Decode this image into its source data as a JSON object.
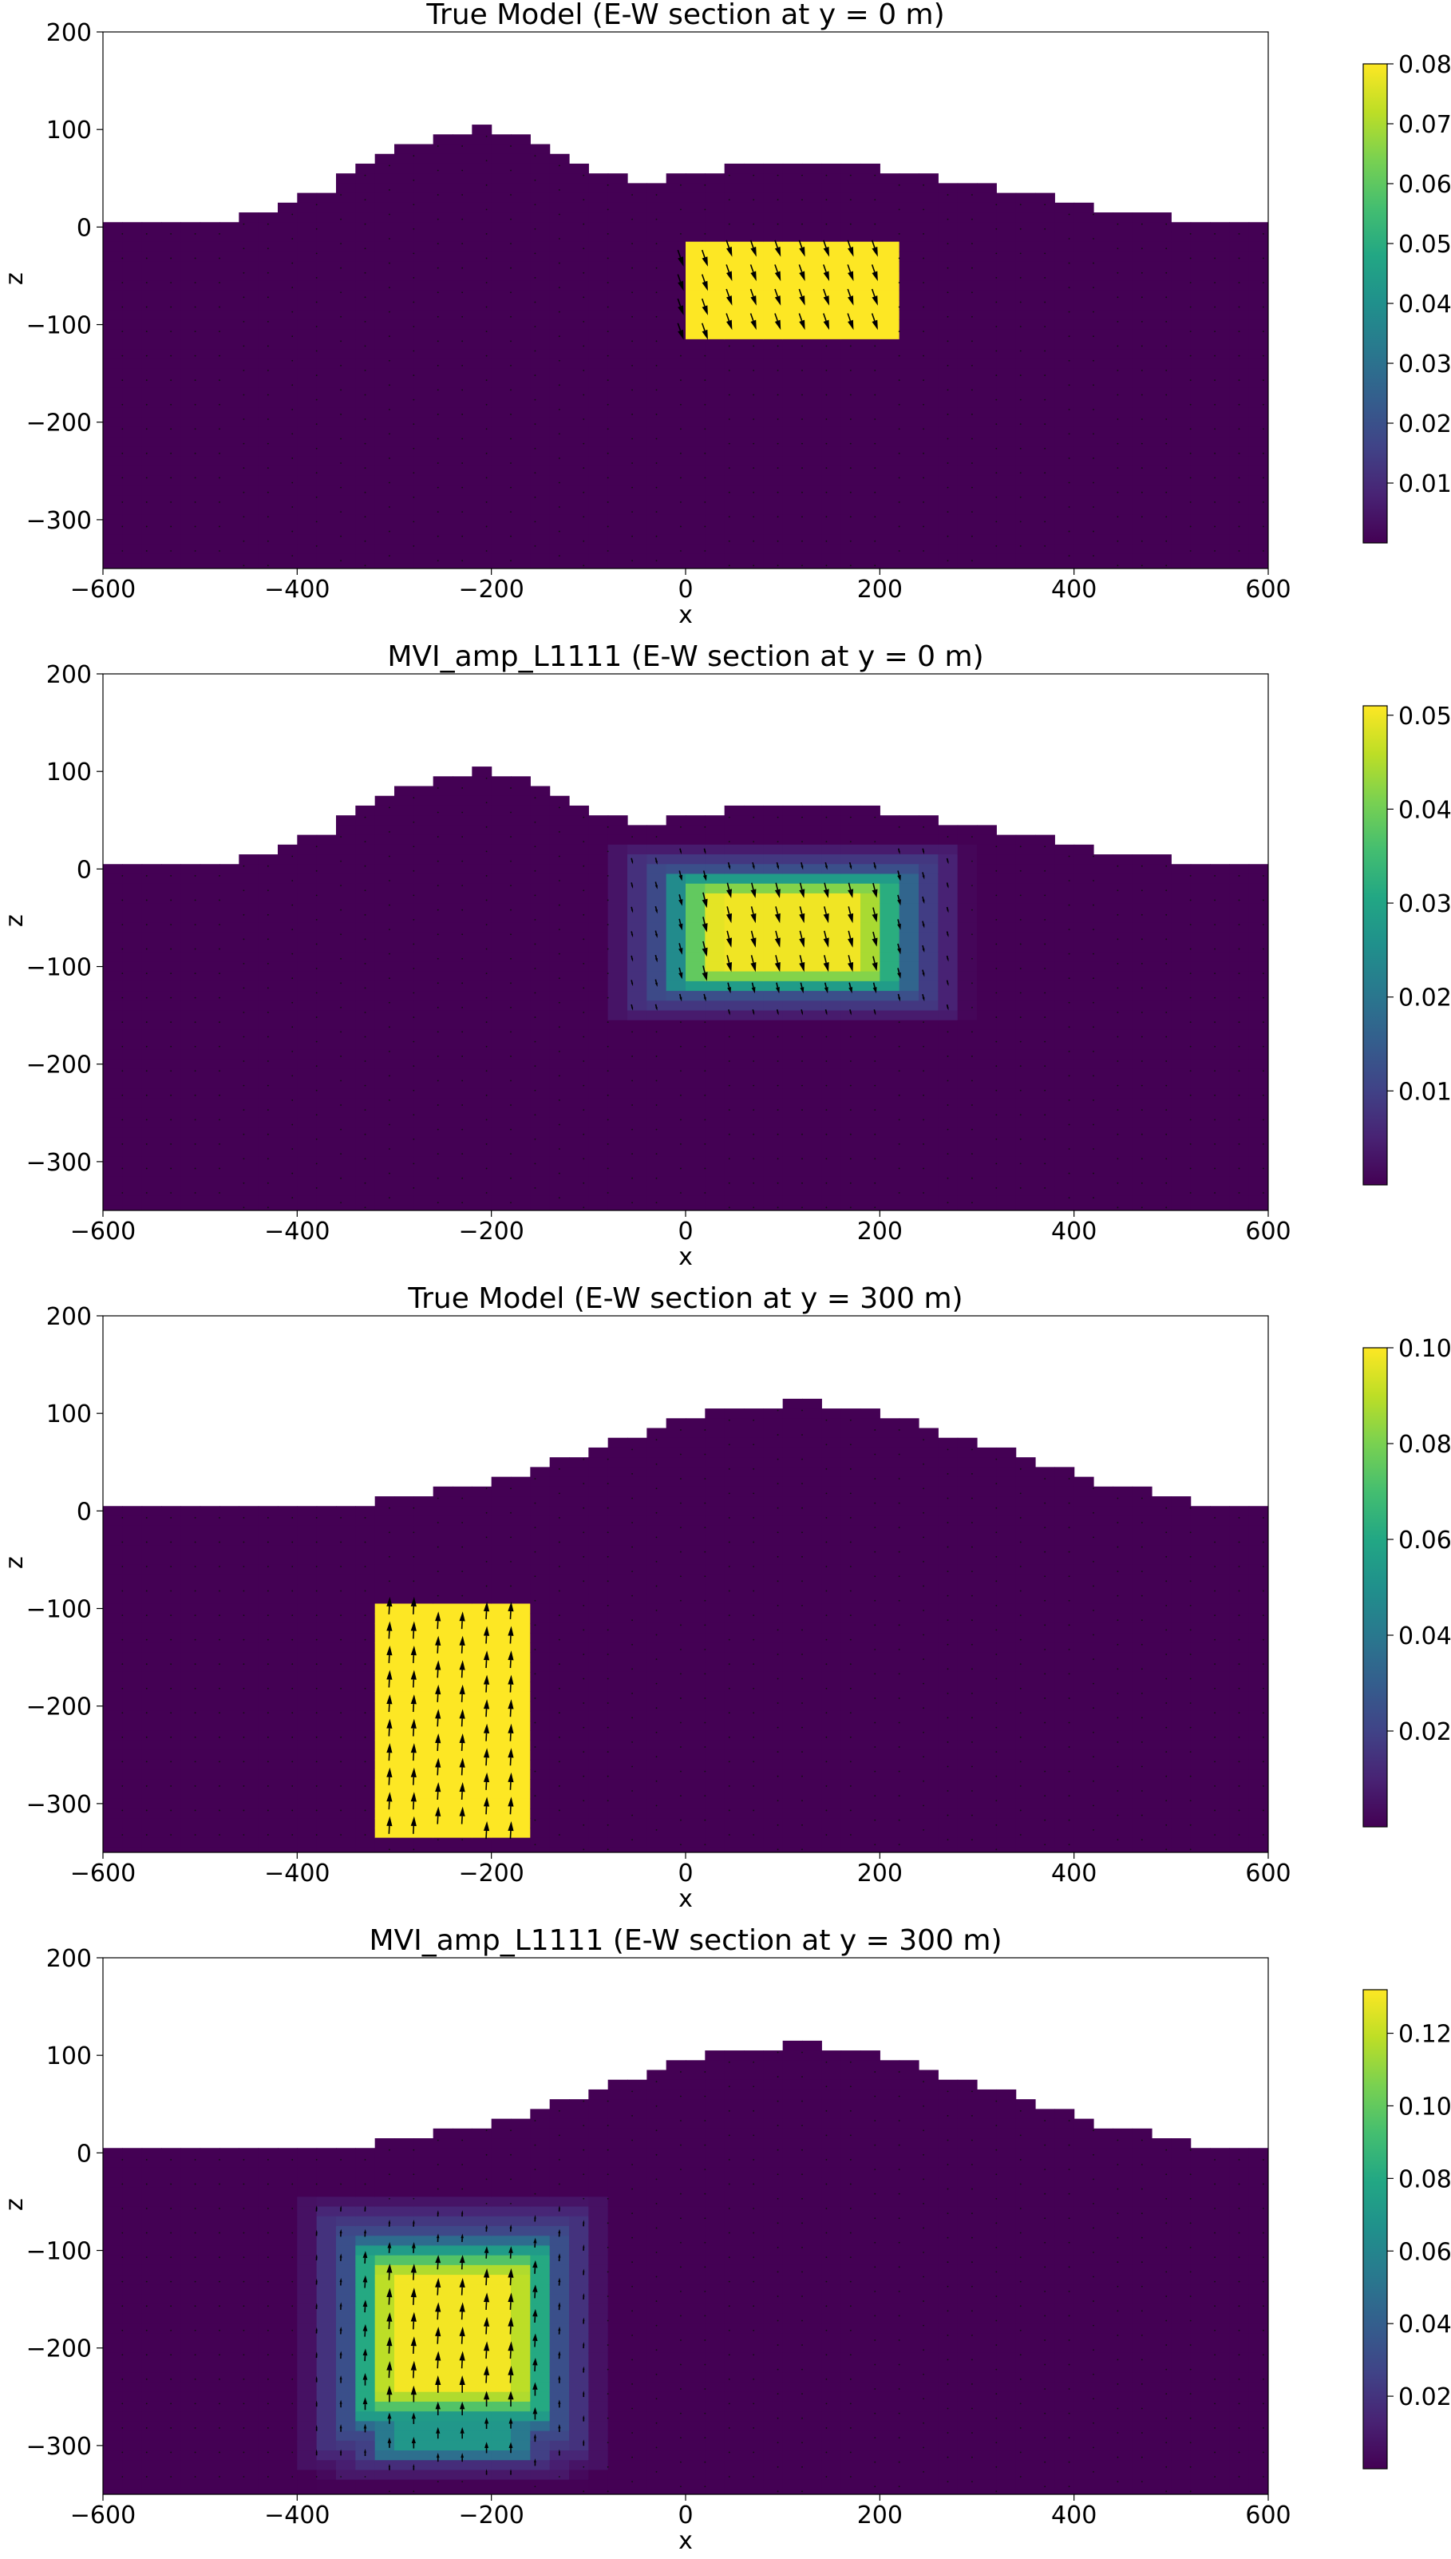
{
  "chart_data": [
    {
      "type": "heatmap",
      "title": "True Model (E-W section at y = 0 m)",
      "xlabel": "x",
      "ylabel": "z",
      "xlim": [
        -600,
        600
      ],
      "ylim": [
        -350,
        200
      ],
      "x_ticks": [
        "−600",
        "−400",
        "−200",
        "0",
        "200",
        "400",
        "600"
      ],
      "y_ticks": [
        "200",
        "100",
        "0",
        "−100",
        "−200",
        "−300"
      ],
      "topography": "A",
      "colorbar": {
        "ticks": [
          "0.01",
          "0.02",
          "0.03",
          "0.04",
          "0.05",
          "0.06",
          "0.07",
          "0.08"
        ],
        "range": [
          0,
          0.08
        ]
      },
      "bodies": [
        {
          "kind": "sharp",
          "x": [
            -5,
            215
          ],
          "z": [
            -15,
            -115
          ],
          "value": 0.08,
          "arrow_dx": 0.35,
          "arrow_dz": -1
        }
      ]
    },
    {
      "type": "heatmap",
      "title": "MVI_amp_L1111 (E-W section at y = 0 m)",
      "xlabel": "x",
      "ylabel": "z",
      "xlim": [
        -600,
        600
      ],
      "ylim": [
        -350,
        200
      ],
      "x_ticks": [
        "−600",
        "−400",
        "−200",
        "0",
        "200",
        "400",
        "600"
      ],
      "y_ticks": [
        "200",
        "100",
        "0",
        "−100",
        "−200",
        "−300"
      ],
      "topography": "A",
      "colorbar": {
        "ticks": [
          "0.01",
          "0.02",
          "0.03",
          "0.04",
          "0.05"
        ],
        "range": [
          0,
          0.051
        ]
      },
      "bodies": [
        {
          "kind": "smooth",
          "cx": 105,
          "cz": -65,
          "hx": 130,
          "hz": 65,
          "peak": 0.05,
          "arrow_dx": 0.25,
          "arrow_dz": -1
        }
      ]
    },
    {
      "type": "heatmap",
      "title": "True Model (E-W section at y = 300 m)",
      "xlabel": "x",
      "ylabel": "z",
      "xlim": [
        -600,
        600
      ],
      "ylim": [
        -350,
        200
      ],
      "x_ticks": [
        "−600",
        "−400",
        "−200",
        "0",
        "200",
        "400",
        "600"
      ],
      "y_ticks": [
        "200",
        "100",
        "0",
        "−100",
        "−200",
        "−300"
      ],
      "topography": "B",
      "colorbar": {
        "ticks": [
          "0.02",
          "0.04",
          "0.06",
          "0.08",
          "0.10"
        ],
        "range": [
          0,
          0.1
        ]
      },
      "bodies": [
        {
          "kind": "sharp",
          "x": [
            -325,
            -165
          ],
          "z": [
            -95,
            -335
          ],
          "value": 0.1,
          "arrow_dx": 0.05,
          "arrow_dz": 1
        }
      ]
    },
    {
      "type": "heatmap",
      "title": "MVI_amp_L1111 (E-W section at y = 300 m)",
      "xlabel": "x",
      "ylabel": "z",
      "xlim": [
        -600,
        600
      ],
      "ylim": [
        -350,
        200
      ],
      "x_ticks": [
        "−600",
        "−400",
        "−200",
        "0",
        "200",
        "400",
        "600"
      ],
      "y_ticks": [
        "200",
        "100",
        "0",
        "−100",
        "−200",
        "−300"
      ],
      "topography": "B",
      "colorbar": {
        "ticks": [
          "0.02",
          "0.04",
          "0.06",
          "0.08",
          "0.10",
          "0.12"
        ],
        "range": [
          0,
          0.132
        ]
      },
      "bodies": [
        {
          "kind": "smooth",
          "cx": -240,
          "cz": -185,
          "hx": 110,
          "hz": 100,
          "peak": 0.13,
          "arrow_dx": 0.05,
          "arrow_dz": 1
        },
        {
          "kind": "smooth",
          "cx": -240,
          "cz": -275,
          "hx": 95,
          "hz": 45,
          "peak": 0.07,
          "arrow_dx": 0.0,
          "arrow_dz": 1
        }
      ]
    }
  ],
  "topography_profiles": {
    "A": [
      [
        -600,
        5
      ],
      [
        -455,
        5
      ],
      [
        -455,
        15
      ],
      [
        -415,
        15
      ],
      [
        -415,
        25
      ],
      [
        -390,
        25
      ],
      [
        -390,
        35
      ],
      [
        -365,
        35
      ],
      [
        -365,
        45
      ],
      [
        -350,
        45
      ],
      [
        -350,
        55
      ],
      [
        -335,
        55
      ],
      [
        -335,
        65
      ],
      [
        -315,
        65
      ],
      [
        -315,
        75
      ],
      [
        -290,
        75
      ],
      [
        -290,
        85
      ],
      [
        -260,
        85
      ],
      [
        -260,
        95
      ],
      [
        -225,
        95
      ],
      [
        -225,
        105
      ],
      [
        -195,
        105
      ],
      [
        -195,
        95
      ],
      [
        -165,
        95
      ],
      [
        -165,
        85
      ],
      [
        -135,
        85
      ],
      [
        -135,
        75
      ],
      [
        -110,
        75
      ],
      [
        -110,
        65
      ],
      [
        -95,
        65
      ],
      [
        -95,
        55
      ],
      [
        -55,
        55
      ],
      [
        -55,
        45
      ],
      [
        -25,
        45
      ],
      [
        -25,
        55
      ],
      [
        35,
        55
      ],
      [
        35,
        65
      ],
      [
        205,
        65
      ],
      [
        205,
        55
      ],
      [
        265,
        55
      ],
      [
        265,
        45
      ],
      [
        315,
        45
      ],
      [
        315,
        35
      ],
      [
        375,
        35
      ],
      [
        375,
        25
      ],
      [
        425,
        25
      ],
      [
        425,
        15
      ],
      [
        505,
        15
      ],
      [
        505,
        5
      ],
      [
        600,
        5
      ]
    ],
    "B": [
      [
        -600,
        5
      ],
      [
        -315,
        5
      ],
      [
        -315,
        15
      ],
      [
        -255,
        15
      ],
      [
        -255,
        25
      ],
      [
        -205,
        25
      ],
      [
        -205,
        35
      ],
      [
        -165,
        35
      ],
      [
        -165,
        45
      ],
      [
        -135,
        45
      ],
      [
        -135,
        55
      ],
      [
        -105,
        55
      ],
      [
        -105,
        65
      ],
      [
        -75,
        65
      ],
      [
        -75,
        75
      ],
      [
        -45,
        75
      ],
      [
        -45,
        85
      ],
      [
        -10,
        85
      ],
      [
        -10,
        95
      ],
      [
        25,
        95
      ],
      [
        25,
        105
      ],
      [
        95,
        105
      ],
      [
        95,
        115
      ],
      [
        145,
        115
      ],
      [
        145,
        105
      ],
      [
        195,
        105
      ],
      [
        195,
        95
      ],
      [
        235,
        95
      ],
      [
        235,
        85
      ],
      [
        265,
        85
      ],
      [
        265,
        75
      ],
      [
        300,
        75
      ],
      [
        300,
        65
      ],
      [
        335,
        65
      ],
      [
        335,
        55
      ],
      [
        370,
        55
      ],
      [
        370,
        45
      ],
      [
        400,
        45
      ],
      [
        400,
        35
      ],
      [
        430,
        35
      ],
      [
        430,
        25
      ],
      [
        475,
        25
      ],
      [
        475,
        15
      ],
      [
        530,
        15
      ],
      [
        530,
        5
      ],
      [
        600,
        5
      ]
    ]
  }
}
